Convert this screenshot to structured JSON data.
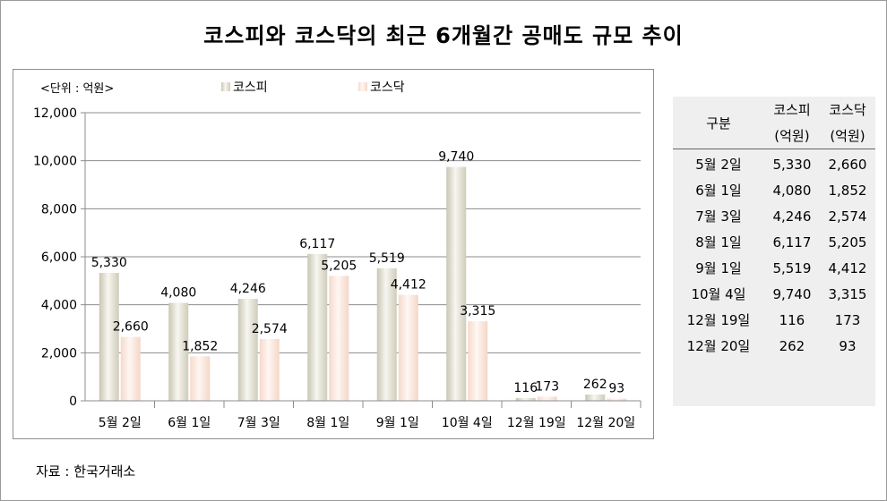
{
  "title": "코스피와 코스닥의 최근 6개월간 공매도 규모 추이",
  "source": "자료 : 한국거래소",
  "chart_data": {
    "type": "bar",
    "unit_label": "<단위 : 억원>",
    "categories": [
      "5월 2일",
      "6월 1일",
      "7월 3일",
      "8월 1일",
      "9월 1일",
      "10월 4일",
      "12월 19일",
      "12월 20일"
    ],
    "series": [
      {
        "name": "코스피",
        "values": [
          5330,
          4080,
          4246,
          6117,
          5519,
          9740,
          116,
          262
        ],
        "labels": [
          "5,330",
          "4,080",
          "4,246",
          "6,117",
          "5,519",
          "9,740",
          "116",
          "262"
        ],
        "color": "#e4e1d2"
      },
      {
        "name": "코스닥",
        "values": [
          2660,
          1852,
          2574,
          5205,
          4412,
          3315,
          173,
          93
        ],
        "labels": [
          "2,660",
          "1,852",
          "2,574",
          "5,205",
          "4,412",
          "3,315",
          "173",
          "93"
        ],
        "color": "#fbe6dc"
      }
    ],
    "ylim": [
      0,
      12000
    ],
    "yticks": [
      0,
      2000,
      4000,
      6000,
      8000,
      10000,
      12000
    ],
    "ytick_labels": [
      "0",
      "2,000",
      "4,000",
      "6,000",
      "8,000",
      "10,000",
      "12,000"
    ],
    "grid": true,
    "legend_position": "top"
  },
  "table": {
    "header": {
      "col1": "구분",
      "col2_line1": "코스피",
      "col2_line2": "(억원)",
      "col3_line1": "코스닥",
      "col3_line2": "(억원)"
    },
    "rows": [
      {
        "date": "5월 2일",
        "kospi": "5,330",
        "kosdaq": "2,660"
      },
      {
        "date": "6월 1일",
        "kospi": "4,080",
        "kosdaq": "1,852"
      },
      {
        "date": "7월 3일",
        "kospi": "4,246",
        "kosdaq": "2,574"
      },
      {
        "date": "8월 1일",
        "kospi": "6,117",
        "kosdaq": "5,205"
      },
      {
        "date": "9월 1일",
        "kospi": "5,519",
        "kosdaq": "4,412"
      },
      {
        "date": "10월 4일",
        "kospi": "9,740",
        "kosdaq": "3,315"
      },
      {
        "date": "12월 19일",
        "kospi": "116",
        "kosdaq": "173"
      },
      {
        "date": "12월 20일",
        "kospi": "262",
        "kosdaq": "93"
      }
    ]
  }
}
